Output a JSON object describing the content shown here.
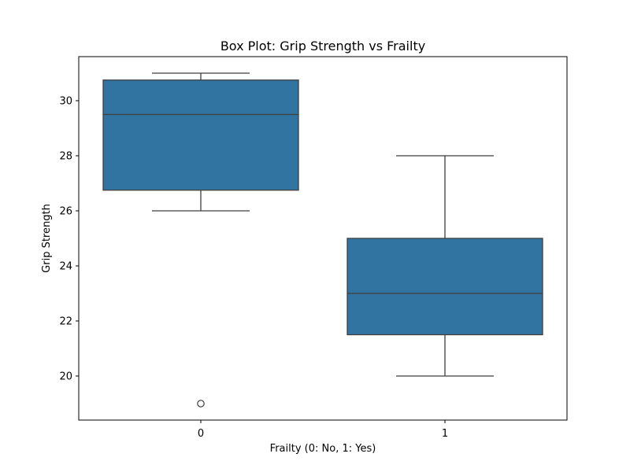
{
  "chart_data": {
    "type": "box",
    "title": "Box Plot: Grip Strength vs Frailty",
    "xlabel": "Frailty (0: No, 1: Yes)",
    "ylabel": "Grip Strength",
    "categories": [
      "0",
      "1"
    ],
    "ylim": [
      18.4,
      31.6
    ],
    "yticks": [
      20,
      22,
      24,
      26,
      28,
      30
    ],
    "grid": false,
    "box_color": "#3274a1",
    "line_color": "#3f3f3f",
    "boxes": [
      {
        "category": "0",
        "whisker_low": 26,
        "q1": 26.75,
        "median": 29.5,
        "q3": 30.75,
        "whisker_high": 31,
        "outliers": [
          19
        ]
      },
      {
        "category": "1",
        "whisker_low": 20,
        "q1": 21.5,
        "median": 23,
        "q3": 25,
        "whisker_high": 28,
        "outliers": []
      }
    ]
  }
}
